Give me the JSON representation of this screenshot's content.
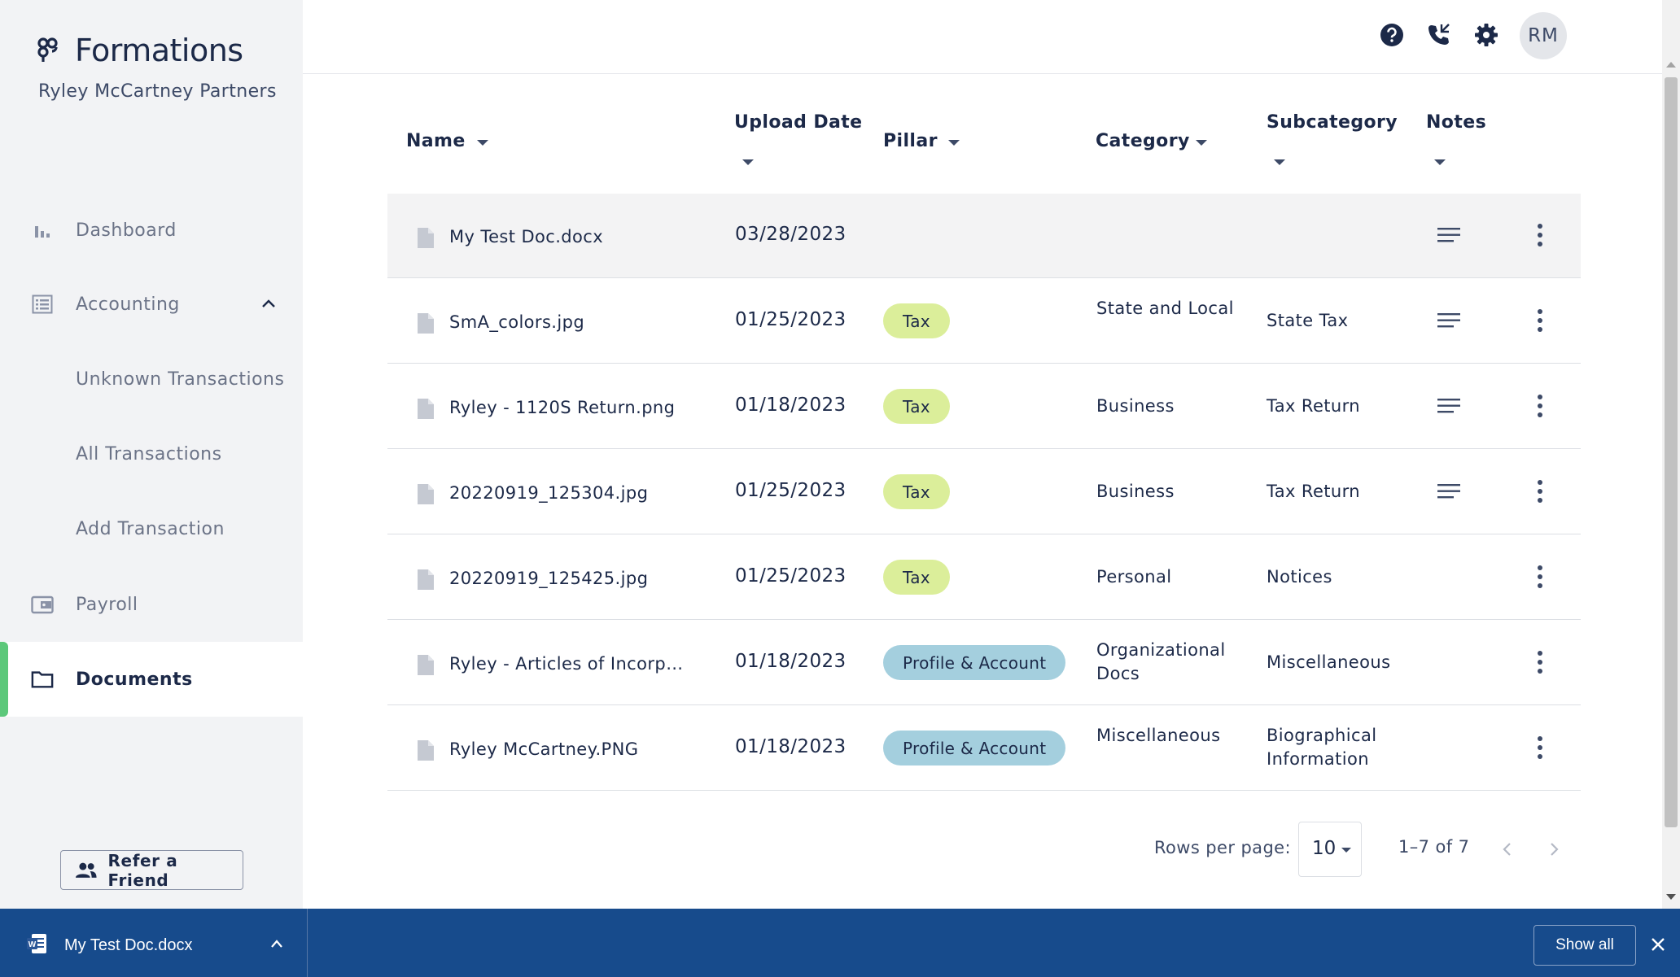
{
  "app": {
    "brand": "Formations",
    "company": "Ryley McCartney Partners"
  },
  "sidebar": {
    "items": [
      {
        "label": "Dashboard",
        "icon": "bar-chart-icon"
      },
      {
        "label": "Accounting",
        "icon": "ledger-icon",
        "expanded": true
      },
      {
        "label": "Unknown Transactions"
      },
      {
        "label": "All Transactions"
      },
      {
        "label": "Add Transaction"
      },
      {
        "label": "Payroll",
        "icon": "wallet-icon"
      },
      {
        "label": "Documents",
        "icon": "folder-icon",
        "active": true
      }
    ],
    "refer_label": "Refer a Friend"
  },
  "header": {
    "icons": [
      "help-icon",
      "phone-icon",
      "settings-icon"
    ],
    "avatar_initials": "RM"
  },
  "table": {
    "columns": [
      "Name",
      "Upload Date",
      "Pillar",
      "Category",
      "Subcategory",
      "Notes"
    ],
    "rows": [
      {
        "name": "My Test Doc.docx",
        "date": "03/28/2023",
        "pillar": "",
        "category": "",
        "subcategory": "",
        "has_notes": true
      },
      {
        "name": "SmA_colors.jpg",
        "date": "01/25/2023",
        "pillar": "Tax",
        "category": "State and Local",
        "subcategory": "State Tax",
        "has_notes": true
      },
      {
        "name": "Ryley - 1120S Return.png",
        "date": "01/18/2023",
        "pillar": "Tax",
        "category": "Business",
        "subcategory": "Tax Return",
        "has_notes": true
      },
      {
        "name": "20220919_125304.jpg",
        "date": "01/25/2023",
        "pillar": "Tax",
        "category": "Business",
        "subcategory": "Tax Return",
        "has_notes": true
      },
      {
        "name": "20220919_125425.jpg",
        "date": "01/25/2023",
        "pillar": "Tax",
        "category": "Personal",
        "subcategory": "Notices",
        "has_notes": false
      },
      {
        "name": "Ryley - Articles of Incorpor...",
        "date": "01/18/2023",
        "pillar": "Profile & Account",
        "category": "Organizational Docs",
        "subcategory": "Miscellaneous",
        "has_notes": false
      },
      {
        "name": "Ryley McCartney.PNG",
        "date": "01/18/2023",
        "pillar": "Profile & Account",
        "category": "Miscellaneous",
        "subcategory": "Biographical Information",
        "has_notes": false
      }
    ]
  },
  "pagination": {
    "rows_per_page_label": "Rows per page:",
    "rows_per_page": "10",
    "range": "1–7 of 7"
  },
  "download_bar": {
    "file_name": "My Test Doc.docx",
    "show_all_label": "Show all"
  },
  "colors": {
    "active_accent": "#5cc87a",
    "tax_pill": "#dbee9a",
    "profile_pill": "#a4cfde",
    "download_bar": "#174b8c",
    "text_primary": "#1c2948"
  }
}
